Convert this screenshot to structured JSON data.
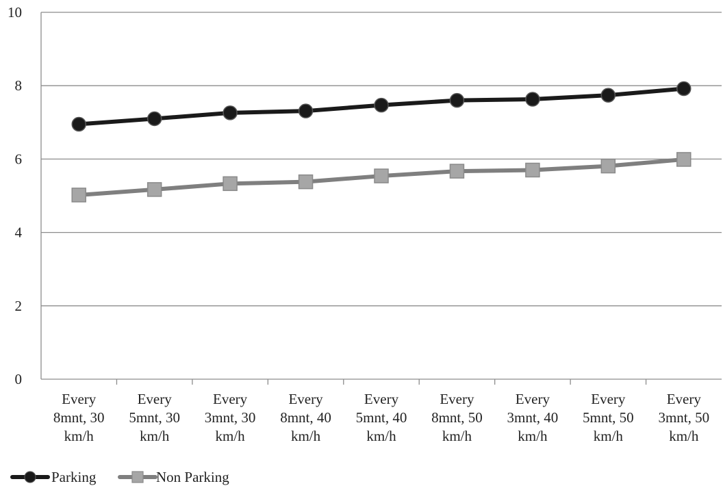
{
  "chart_data": {
    "type": "line",
    "categories": [
      [
        "Every",
        "8mnt, 30",
        "km/h"
      ],
      [
        "Every",
        "5mnt, 30",
        "km/h"
      ],
      [
        "Every",
        "3mnt, 30",
        "km/h"
      ],
      [
        "Every",
        "8mnt, 40",
        "km/h"
      ],
      [
        "Every",
        "5mnt, 40",
        "km/h"
      ],
      [
        "Every",
        "8mnt, 50",
        "km/h"
      ],
      [
        "Every",
        "3mnt, 40",
        "km/h"
      ],
      [
        "Every",
        "5mnt, 50",
        "km/h"
      ],
      [
        "Every",
        "3mnt, 50",
        "km/h"
      ]
    ],
    "series": [
      {
        "name": "Parking",
        "values": [
          6.95,
          7.1,
          7.26,
          7.31,
          7.47,
          7.6,
          7.63,
          7.74,
          7.92
        ],
        "color": "#1a1a1a",
        "marker": "circle"
      },
      {
        "name": "Non Parking",
        "values": [
          5.02,
          5.17,
          5.33,
          5.38,
          5.54,
          5.67,
          5.7,
          5.81,
          5.99
        ],
        "color": "#7f7f7f",
        "marker_fill": "#a6a6a6",
        "marker": "square"
      }
    ],
    "ylim": [
      0,
      10
    ],
    "yticks": [
      0,
      2,
      4,
      6,
      8,
      10
    ],
    "grid": true,
    "legend_position": "bottom-left",
    "title": "",
    "xlabel": "",
    "ylabel": ""
  }
}
